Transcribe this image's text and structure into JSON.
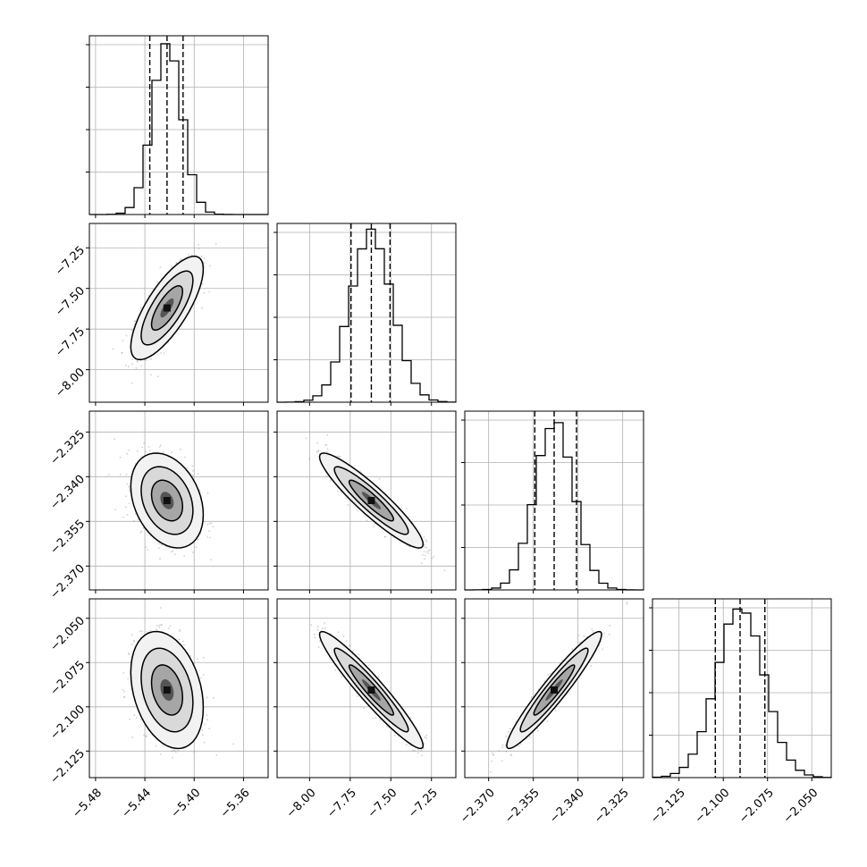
{
  "chart_data": {
    "type": "corner",
    "title": "",
    "parameters": [
      {
        "range": [
          -5.485,
          -5.34
        ],
        "ticks": [
          -5.48,
          -5.44,
          -5.4,
          -5.36
        ],
        "tick_labels": [
          "−5.48",
          "−5.44",
          "−5.40",
          "−5.36"
        ],
        "center": -5.422,
        "sigma": 0.012,
        "quantiles": [
          -5.436,
          -5.422,
          -5.409
        ],
        "hist_max": 100
      },
      {
        "range": [
          -8.2,
          -7.1
        ],
        "ticks": [
          -8.0,
          -7.75,
          -7.5,
          -7.25
        ],
        "tick_labels": [
          "−8.00",
          "−7.75",
          "−7.50",
          "−7.25"
        ],
        "center": -7.62,
        "sigma": 0.13,
        "quantiles": [
          -7.745,
          -7.62,
          -7.505
        ],
        "hist_max": 100
      },
      {
        "range": [
          -2.378,
          -2.318
        ],
        "ticks": [
          -2.37,
          -2.355,
          -2.34,
          -2.325
        ],
        "tick_labels": [
          "−2.370",
          "−2.355",
          "−2.340",
          "−2.325"
        ],
        "center": -2.348,
        "sigma": 0.0065,
        "quantiles": [
          -2.3545,
          -2.348,
          -2.3405
        ],
        "hist_max": 100
      },
      {
        "range": [
          -2.14,
          -2.039
        ],
        "ticks": [
          -2.125,
          -2.1,
          -2.075,
          -2.05
        ],
        "tick_labels": [
          "−2.125",
          "−2.100",
          "−2.075",
          "−2.050"
        ],
        "center": -2.0905,
        "sigma": 0.0135,
        "quantiles": [
          -2.1045,
          -2.0905,
          -2.0765
        ],
        "hist_max": 100
      }
    ],
    "correlations": [
      {
        "row": 1,
        "col": 0,
        "rho": 0.75
      },
      {
        "row": 2,
        "col": 0,
        "rho": -0.3
      },
      {
        "row": 2,
        "col": 1,
        "rho": -0.92
      },
      {
        "row": 3,
        "col": 0,
        "rho": -0.3
      },
      {
        "row": 3,
        "col": 1,
        "rho": -0.95
      },
      {
        "row": 3,
        "col": 2,
        "rho": 0.95
      }
    ],
    "grid": true,
    "contour_levels": 3,
    "colors": {
      "line": "#000000",
      "points": "#555555",
      "grid": "#b0b0b0"
    }
  }
}
